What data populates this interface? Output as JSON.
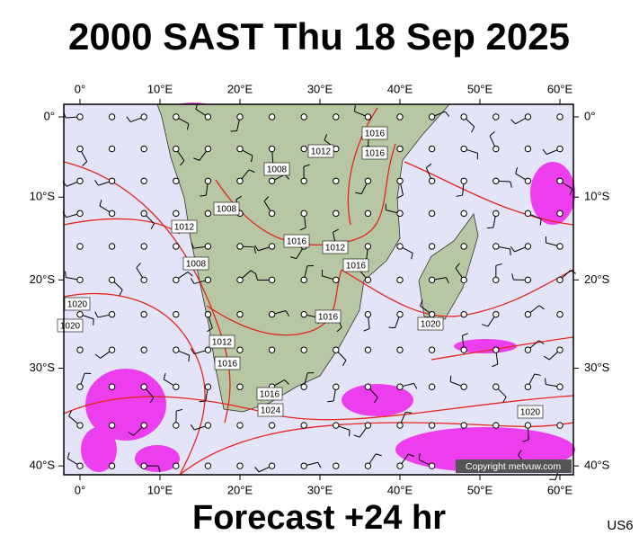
{
  "header": {
    "title": "2000 SAST Thu 18 Sep 2025"
  },
  "map": {
    "lon_ticks": [
      {
        "value": 0,
        "label": "0°"
      },
      {
        "value": 10,
        "label": "10°E"
      },
      {
        "value": 20,
        "label": "20°E"
      },
      {
        "value": 30,
        "label": "30°E"
      },
      {
        "value": 40,
        "label": "40°E"
      },
      {
        "value": 50,
        "label": "50°E"
      },
      {
        "value": 60,
        "label": "60°E"
      }
    ],
    "lat_ticks": [
      {
        "value": 0,
        "label": "0°"
      },
      {
        "value": -10,
        "label": "10°S"
      },
      {
        "value": -20,
        "label": "20°S"
      },
      {
        "value": -30,
        "label": "30°S"
      },
      {
        "value": -40,
        "label": "40°S"
      }
    ],
    "isobar_labels": [
      "1008",
      "1012",
      "1016",
      "1008",
      "1012",
      "1008",
      "1016",
      "1012",
      "1016",
      "1020",
      "1020",
      "1012",
      "1016",
      "1016",
      "1020",
      "1024",
      "1016",
      "1016",
      "1020"
    ],
    "copyright": "Copyright metvuw.com"
  },
  "footer": {
    "forecast": "Forecast +24 hr",
    "model": "US6"
  }
}
